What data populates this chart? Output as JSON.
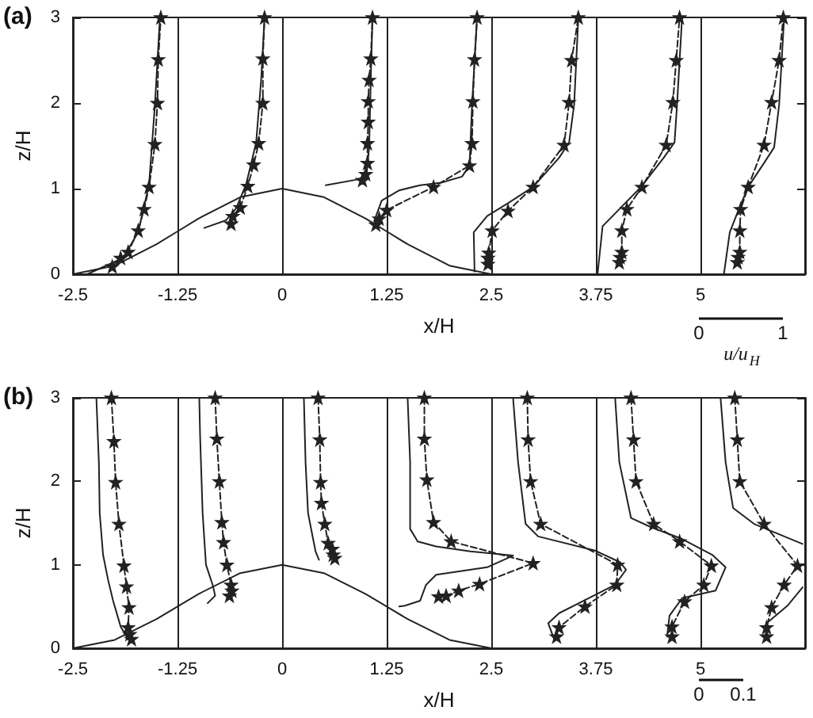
{
  "chart_data": [
    {
      "type": "line",
      "title": "(a)",
      "xlabel": "x/H",
      "ylabel": "z/H",
      "xlim": [
        -2.5,
        6.25
      ],
      "ylim": [
        0,
        3
      ],
      "xticks": [
        -2.5,
        -1.25,
        0,
        1.25,
        2.5,
        3.75,
        5
      ],
      "yticks": [
        0,
        1,
        2,
        3
      ],
      "annotations": [
        "0",
        "1",
        "u/u$_{H}$"
      ],
      "ref_lines": [
        {
          "axis": "x",
          "value": -1.25,
          "color": "#222222"
        },
        {
          "axis": "x",
          "value": 0,
          "color": "#222222"
        },
        {
          "axis": "x",
          "value": 1.25,
          "color": "#222222"
        },
        {
          "axis": "x",
          "value": 2.5,
          "color": "#222222"
        },
        {
          "axis": "x",
          "value": 3.75,
          "color": "#222222"
        },
        {
          "axis": "x",
          "value": 5,
          "color": "#222222"
        }
      ],
      "series": [
        {
          "color": "#222222",
          "line_style": "solid",
          "marker": "none",
          "x": [
            -2.5,
            -2,
            -1.5,
            -1.25,
            -1,
            -0.5,
            0,
            0.5,
            1,
            1.25,
            1.5,
            2,
            2.5
          ],
          "values": [
            0,
            0.1,
            0.35,
            0.5,
            0.65,
            0.9,
            1,
            0.9,
            0.65,
            0.5,
            0.35,
            0.1,
            0
          ]
        },
        {
          "color": "#222222",
          "line_style": "solid",
          "marker": "none",
          "x": [
            -2.33,
            -1.9,
            -1.72,
            -1.59,
            -1.52,
            -1.46
          ],
          "values": [
            0,
            0.19,
            0.49,
            1.05,
            1.98,
            3.0
          ]
        },
        {
          "color": "#222222",
          "line_style": "dashed",
          "marker": "star",
          "x": [
            -2.03,
            -1.93,
            -1.84,
            -1.72,
            -1.65,
            -1.59,
            -1.52,
            -1.49,
            -1.48,
            -1.45
          ],
          "values": [
            0.09,
            0.19,
            0.26,
            0.51,
            0.76,
            1.02,
            1.52,
            2.0,
            2.51,
            3.0
          ]
        },
        {
          "color": "#222222",
          "line_style": "solid",
          "marker": "none",
          "x": [
            -0.93,
            -0.67,
            -0.55,
            -0.43,
            -0.31,
            -0.25,
            -0.21
          ],
          "values": [
            0.54,
            0.63,
            0.77,
            1.05,
            1.54,
            2.28,
            3.0
          ]
        },
        {
          "color": "#222222",
          "line_style": "dashed",
          "marker": "star",
          "x": [
            -0.61,
            -0.59,
            -0.5,
            -0.41,
            -0.34,
            -0.28,
            -0.23,
            -0.23,
            -0.21
          ],
          "values": [
            0.59,
            0.68,
            0.78,
            1.03,
            1.28,
            1.53,
            2.0,
            2.52,
            3.0
          ]
        },
        {
          "color": "#222222",
          "line_style": "solid",
          "marker": "none",
          "x": [
            0.52,
            0.92,
            1.01,
            1.04,
            1.06,
            1.08
          ],
          "values": [
            1.04,
            1.11,
            1.17,
            1.48,
            2.28,
            3.0
          ]
        },
        {
          "color": "#222222",
          "line_style": "dashed",
          "marker": "star",
          "x": [
            0.96,
            1.0,
            1.02,
            1.02,
            1.03,
            1.03,
            1.04,
            1.06,
            1.08
          ],
          "values": [
            1.1,
            1.17,
            1.3,
            1.53,
            1.78,
            2.02,
            2.27,
            2.52,
            3.0
          ]
        },
        {
          "color": "#222222",
          "line_style": "solid",
          "marker": "none",
          "x": [
            1.1,
            1.19,
            1.4,
            1.65,
            1.9,
            2.15,
            2.24,
            2.27,
            2.33
          ],
          "values": [
            0.62,
            0.86,
            0.98,
            1.04,
            1.07,
            1.14,
            1.27,
            1.98,
            3.0
          ]
        },
        {
          "color": "#222222",
          "line_style": "dashed",
          "marker": "star",
          "x": [
            1.12,
            1.16,
            1.25,
            1.81,
            2.24,
            2.27,
            2.28,
            2.3,
            2.33
          ],
          "values": [
            0.58,
            0.65,
            0.75,
            1.02,
            1.27,
            1.53,
            2.02,
            2.51,
            3.0
          ]
        },
        {
          "color": "#222222",
          "line_style": "solid",
          "marker": "none",
          "x": [
            2.3,
            2.29,
            2.45,
            2.7,
            3.0,
            3.31,
            3.43,
            3.49,
            3.54
          ],
          "values": [
            0.03,
            0.49,
            0.68,
            0.83,
            1.02,
            1.36,
            1.54,
            1.98,
            3.0
          ]
        },
        {
          "color": "#222222",
          "line_style": "dashed",
          "marker": "star",
          "x": [
            2.46,
            2.46,
            2.47,
            2.51,
            2.7,
            3.0,
            3.37,
            3.43,
            3.46,
            3.54
          ],
          "values": [
            0.12,
            0.19,
            0.25,
            0.51,
            0.74,
            1.02,
            1.51,
            2.01,
            2.5,
            3.0
          ]
        },
        {
          "color": "#222222",
          "line_style": "solid",
          "marker": "none",
          "x": [
            3.77,
            3.83,
            4.04,
            4.29,
            4.56,
            4.69,
            4.72,
            4.78
          ],
          "values": [
            0,
            0.56,
            0.77,
            1.02,
            1.36,
            1.54,
            1.98,
            3.0
          ]
        },
        {
          "color": "#222222",
          "line_style": "dashed",
          "marker": "star",
          "x": [
            4.03,
            4.04,
            4.06,
            4.06,
            4.12,
            4.3,
            4.59,
            4.67,
            4.71,
            4.75
          ],
          "values": [
            0.14,
            0.2,
            0.26,
            0.51,
            0.76,
            1.02,
            1.51,
            2.01,
            2.5,
            3.0
          ]
        },
        {
          "color": "#222222",
          "line_style": "solid",
          "marker": "none",
          "x": [
            5.28,
            5.35,
            5.45,
            5.57,
            5.76,
            5.88,
            5.94,
            6.0
          ],
          "values": [
            0,
            0.49,
            0.74,
            1.02,
            1.3,
            1.48,
            1.98,
            3.0
          ]
        },
        {
          "color": "#222222",
          "line_style": "dashed",
          "marker": "star",
          "x": [
            5.44,
            5.45,
            5.47,
            5.47,
            5.48,
            5.57,
            5.76,
            5.85,
            5.94,
            5.99
          ],
          "values": [
            0.14,
            0.2,
            0.26,
            0.51,
            0.76,
            1.02,
            1.51,
            2.01,
            2.5,
            3.0
          ]
        }
      ]
    },
    {
      "type": "line",
      "title": "(b)",
      "xlabel": "x/H",
      "ylabel": "z/H",
      "xlim": [
        -2.5,
        6.25
      ],
      "ylim": [
        0,
        3
      ],
      "xticks": [
        -2.5,
        -1.25,
        0,
        1.25,
        2.5,
        3.75,
        5
      ],
      "yticks": [
        0,
        1,
        2,
        3
      ],
      "annotations": [
        "0",
        "0.1"
      ],
      "ref_lines": [
        {
          "axis": "x",
          "value": -1.25,
          "color": "#222222"
        },
        {
          "axis": "x",
          "value": 0,
          "color": "#222222"
        },
        {
          "axis": "x",
          "value": 1.25,
          "color": "#222222"
        },
        {
          "axis": "x",
          "value": 2.5,
          "color": "#222222"
        },
        {
          "axis": "x",
          "value": 3.75,
          "color": "#222222"
        },
        {
          "axis": "x",
          "value": 5,
          "color": "#222222"
        }
      ],
      "series": [
        {
          "color": "#222222",
          "line_style": "solid",
          "marker": "none",
          "x": [
            -2.5,
            -2,
            -1.5,
            -1.25,
            -1,
            -0.5,
            0,
            0.5,
            1,
            1.25,
            1.5,
            2,
            2.5
          ],
          "values": [
            0,
            0.1,
            0.35,
            0.5,
            0.65,
            0.9,
            1,
            0.9,
            0.65,
            0.5,
            0.35,
            0.1,
            0
          ]
        },
        {
          "color": "#222222",
          "line_style": "solid",
          "marker": "none",
          "x": [
            -2.22,
            -2.19,
            -2.18,
            -2.14,
            -2.08,
            -2.02,
            -1.93,
            -1.84
          ],
          "values": [
            3.0,
            2.23,
            1.62,
            1.12,
            0.82,
            0.57,
            0.26,
            0.11
          ]
        },
        {
          "color": "#222222",
          "line_style": "dashed",
          "marker": "star",
          "x": [
            -2.04,
            -2.01,
            -1.99,
            -1.95,
            -1.89,
            -1.86,
            -1.83,
            -1.84,
            -1.82,
            -1.8
          ],
          "values": [
            3.0,
            2.48,
            1.99,
            1.49,
            0.99,
            0.74,
            0.49,
            0.25,
            0.17,
            0.11
          ]
        },
        {
          "color": "#222222",
          "line_style": "solid",
          "marker": "none",
          "x": [
            -0.99,
            -0.98,
            -0.95,
            -0.91,
            -0.83,
            -0.8,
            -0.89
          ],
          "values": [
            3.0,
            2.54,
            1.62,
            1.0,
            0.76,
            0.63,
            0.54
          ]
        },
        {
          "color": "#222222",
          "line_style": "dashed",
          "marker": "star",
          "x": [
            -0.8,
            -0.78,
            -0.75,
            -0.72,
            -0.7,
            -0.66,
            -0.61,
            -0.6,
            -0.63
          ],
          "values": [
            3.0,
            2.51,
            2.0,
            1.51,
            1.27,
            1.0,
            0.76,
            0.69,
            0.63
          ]
        },
        {
          "color": "#222222",
          "line_style": "solid",
          "marker": "none",
          "x": [
            0.26,
            0.28,
            0.31,
            0.37,
            0.4,
            0.44
          ],
          "values": [
            3.0,
            2.23,
            1.62,
            1.31,
            1.16,
            1.06
          ]
        },
        {
          "color": "#222222",
          "line_style": "dashed",
          "marker": "star",
          "x": [
            0.43,
            0.45,
            0.46,
            0.47,
            0.51,
            0.55,
            0.6,
            0.61,
            0.63
          ],
          "values": [
            3.0,
            2.5,
            1.99,
            1.74,
            1.49,
            1.26,
            1.19,
            1.12,
            1.08
          ]
        },
        {
          "color": "#222222",
          "line_style": "solid",
          "marker": "none",
          "x": [
            1.5,
            1.53,
            1.53,
            1.62,
            1.84,
            2.25,
            2.76,
            2.45,
            1.84,
            1.72,
            1.65,
            1.47,
            1.4
          ],
          "values": [
            3.0,
            2.23,
            1.43,
            1.28,
            1.22,
            1.16,
            1.11,
            0.97,
            0.88,
            0.76,
            0.57,
            0.51,
            0.5
          ]
        },
        {
          "color": "#222222",
          "line_style": "dashed",
          "marker": "star",
          "x": [
            1.7,
            1.7,
            1.73,
            1.81,
            2.02,
            3.0,
            2.36,
            2.11,
            1.96,
            1.87
          ],
          "values": [
            3.0,
            2.51,
            2.02,
            1.51,
            1.28,
            1.02,
            0.77,
            0.69,
            0.63,
            0.62
          ]
        },
        {
          "color": "#222222",
          "line_style": "solid",
          "marker": "none",
          "x": [
            2.76,
            2.82,
            2.91,
            3.06,
            3.74,
            4.04,
            4.11,
            3.98,
            3.31,
            3.18,
            3.25
          ],
          "values": [
            3.0,
            2.23,
            1.49,
            1.34,
            1.17,
            1.03,
            0.94,
            0.76,
            0.42,
            0.3,
            0.11
          ]
        },
        {
          "color": "#222222",
          "line_style": "dashed",
          "marker": "star",
          "x": [
            2.93,
            2.94,
            2.97,
            3.09,
            4.01,
            4.0,
            3.62,
            3.31,
            3.28
          ],
          "values": [
            3.0,
            2.5,
            2.0,
            1.49,
            1.0,
            0.76,
            0.5,
            0.25,
            0.14
          ]
        },
        {
          "color": "#222222",
          "line_style": "solid",
          "marker": "none",
          "x": [
            3.98,
            4.03,
            4.17,
            4.41,
            4.78,
            5.14,
            5.3,
            5.18,
            4.78,
            4.63,
            4.6
          ],
          "values": [
            3.0,
            2.23,
            1.56,
            1.45,
            1.31,
            1.12,
            0.97,
            0.69,
            0.6,
            0.39,
            0.14
          ]
        },
        {
          "color": "#222222",
          "line_style": "dashed",
          "marker": "star",
          "x": [
            4.17,
            4.2,
            4.23,
            4.44,
            4.75,
            5.13,
            5.04,
            4.81,
            4.66,
            4.66
          ],
          "values": [
            3.0,
            2.5,
            2.0,
            1.49,
            1.28,
            0.99,
            0.76,
            0.56,
            0.26,
            0.14
          ]
        },
        {
          "color": "#222222",
          "line_style": "solid",
          "marker": "none",
          "x": [
            5.24,
            5.3,
            5.39,
            5.64,
            6.22
          ],
          "values": [
            3.0,
            2.23,
            1.68,
            1.49,
            1.25
          ]
        },
        {
          "color": "#222222",
          "line_style": "solid",
          "marker": "none",
          "x": [
            6.22,
            6.04,
            5.79,
            5.79
          ],
          "values": [
            0.73,
            0.51,
            0.3,
            0.11
          ]
        },
        {
          "color": "#222222",
          "line_style": "dashed",
          "marker": "star",
          "x": [
            5.41,
            5.44,
            5.47,
            5.76,
            6.16,
            6.0,
            5.85,
            5.79,
            5.79
          ],
          "values": [
            3.0,
            2.5,
            2.0,
            1.49,
            0.99,
            0.76,
            0.49,
            0.25,
            0.14
          ]
        }
      ]
    }
  ]
}
